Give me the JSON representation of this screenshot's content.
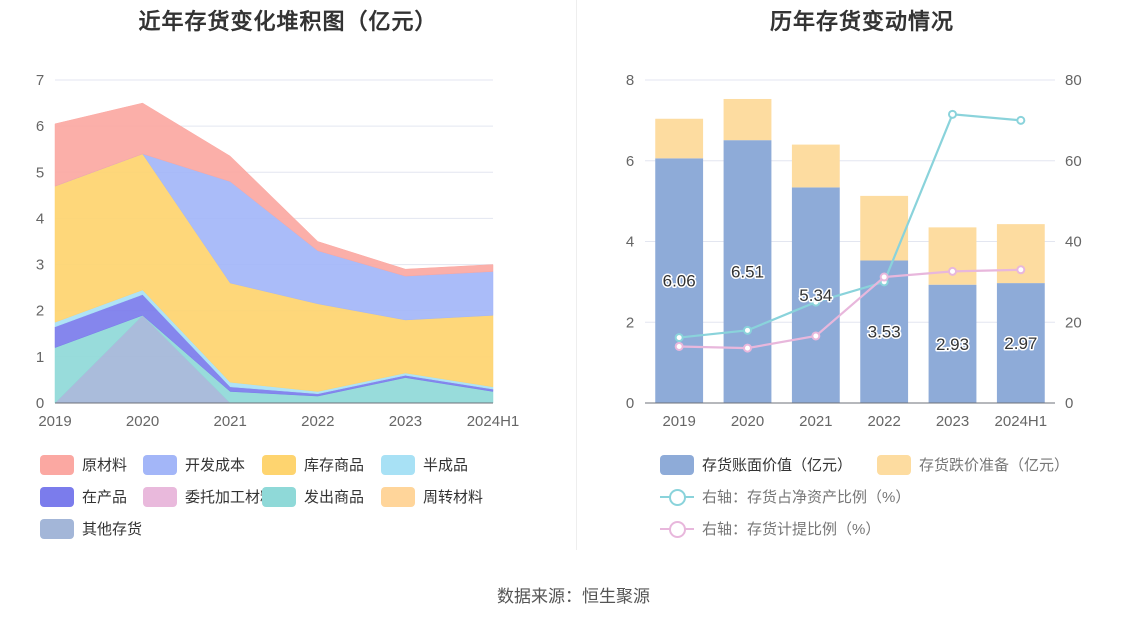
{
  "source_text": "数据来源：恒生聚源",
  "chart_data": [
    {
      "type": "area",
      "stacked": true,
      "title": "近年存货变化堆积图（亿元）",
      "categories": [
        "2019",
        "2020",
        "2021",
        "2022",
        "2023",
        "2024H1"
      ],
      "ylim": [
        0,
        7
      ],
      "yticks": [
        "0",
        "1",
        "2",
        "3",
        "4",
        "5",
        "6",
        "7"
      ],
      "grid": true,
      "legend_position": "bottom",
      "series": [
        {
          "name": "原材料",
          "color": "#fba8a2",
          "values": [
            1.35,
            1.1,
            0.55,
            0.2,
            0.15,
            0.15
          ]
        },
        {
          "name": "开发成本",
          "color": "#a3b6f8",
          "values": [
            0,
            0,
            2.2,
            1.15,
            0.95,
            0.95
          ]
        },
        {
          "name": "库存商品",
          "color": "#fed46f",
          "values": [
            2.95,
            2.95,
            2.15,
            1.9,
            1.15,
            1.55
          ]
        },
        {
          "name": "半成品",
          "color": "#a8e1f5",
          "values": [
            0.1,
            0.1,
            0.1,
            0.05,
            0.05,
            0.05
          ]
        },
        {
          "name": "在产品",
          "color": "#7b7cec",
          "values": [
            0.45,
            0.45,
            0.1,
            0.05,
            0.05,
            0.05
          ]
        },
        {
          "name": "委托加工材料",
          "color": "#e9b9dc",
          "values": [
            0,
            0,
            0,
            0,
            0,
            0
          ]
        },
        {
          "name": "发出商品",
          "color": "#8fd9d8",
          "values": [
            1.2,
            0,
            0.25,
            0.15,
            0.55,
            0.25
          ]
        },
        {
          "name": "周转材料",
          "color": "#ffd59a",
          "values": [
            0,
            0,
            0,
            0,
            0,
            0
          ]
        },
        {
          "name": "其他存货",
          "color": "#a3b6d8",
          "values": [
            0,
            1.9,
            0,
            0,
            0,
            0
          ]
        }
      ]
    },
    {
      "type": "bar",
      "stacked": true,
      "title": "历年存货变动情况",
      "categories": [
        "2019",
        "2020",
        "2021",
        "2022",
        "2023",
        "2024H1"
      ],
      "ylim": [
        0,
        8
      ],
      "yticks": [
        "0",
        "2",
        "4",
        "6",
        "8"
      ],
      "y2lim": [
        0,
        80
      ],
      "y2ticks": [
        "0",
        "20",
        "40",
        "60",
        "80"
      ],
      "grid": true,
      "legend_position": "bottom",
      "series": [
        {
          "name": "存货账面价值（亿元）",
          "color": "#8eabd8",
          "values": [
            6.06,
            6.51,
            5.34,
            3.53,
            2.93,
            2.97
          ],
          "labels": [
            "6.06",
            "6.51",
            "5.34",
            "3.53",
            "2.93",
            "2.97"
          ]
        },
        {
          "name": "存货跌价准备（亿元）",
          "color": "#fddca0",
          "values": [
            0.98,
            1.02,
            1.06,
            1.6,
            1.42,
            1.46
          ]
        }
      ],
      "line_series": [
        {
          "name": "右轴：存货占净资产比例（%）",
          "color": "#8ad3db",
          "values": [
            16.2,
            18.0,
            25.0,
            30.0,
            71.5,
            70.0
          ]
        },
        {
          "name": "右轴：存货计提比例（%）",
          "color": "#e8b7dc",
          "values": [
            14.0,
            13.6,
            16.6,
            31.2,
            32.6,
            33.0
          ]
        }
      ]
    }
  ]
}
